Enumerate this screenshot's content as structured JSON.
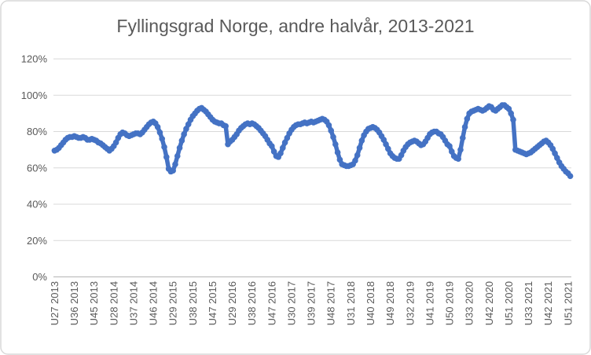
{
  "title": "Fyllingsgrad Norge, andre halvår, 2013-2021",
  "chart_data": {
    "type": "line",
    "title": "Fyllingsgrad Norge, andre halvår, 2013-2021",
    "unit": "percent",
    "ylim": [
      0,
      120
    ],
    "y_tick_step": 20,
    "y_tick_labels": [
      "0%",
      "20%",
      "40%",
      "60%",
      "80%",
      "100%",
      "120%"
    ],
    "x_tick_interval": 9,
    "x_tick_labels": [
      "U27 2013",
      "U36 2013",
      "U45 2013",
      "U28 2014",
      "U37 2014",
      "U46 2014",
      "U29 2015",
      "U38 2015",
      "U47 2015",
      "U29 2016",
      "U38 2016",
      "U47 2016",
      "U30 2017",
      "U39 2017",
      "U48 2017",
      "U31 2018",
      "U40 2018",
      "U49 2018",
      "U32 2019",
      "U41 2019",
      "U50 2019",
      "U33 2020",
      "U42 2020",
      "U51 2020",
      "U33 2021",
      "U42 2021",
      "U51 2021"
    ],
    "grid": true,
    "legend": false,
    "series_name": "Fyllingsgrad",
    "colors": {
      "marker": "#4472C4",
      "gridline": "#D9D9D9",
      "axis_line": "#BFBFBF",
      "label_text": "#595959",
      "title_text": "#595959",
      "border": "#D9D9D9",
      "background": "#FFFFFF"
    },
    "weekly_series": [
      {
        "year": 2013,
        "first_week": 27,
        "values": [
          69.5,
          70,
          71,
          72.5,
          74,
          75.5,
          76.5,
          77,
          77,
          77.5,
          77,
          76.5,
          76.5,
          77,
          76.5,
          75.5,
          75.5,
          76,
          75.5,
          75,
          74,
          73.5,
          72.5,
          71.5,
          70.5,
          69.5
        ]
      },
      {
        "year": 2014,
        "first_week": 27,
        "values": [
          70.5,
          72,
          74,
          76.5,
          78.5,
          79.5,
          79,
          78,
          77.5,
          78,
          78.5,
          79,
          79,
          78.5,
          79.5,
          81,
          82.5,
          84,
          85,
          85.5,
          84.5,
          82.5,
          79.5,
          76,
          71.5,
          66
        ]
      },
      {
        "year": 2015,
        "first_week": 27,
        "values": [
          59.5,
          58,
          58.5,
          62,
          66.5,
          71,
          75,
          78.5,
          81.5,
          84,
          86.5,
          88.5,
          90,
          91.5,
          92.5,
          93,
          92,
          91,
          89.5,
          88,
          86.5,
          85.5,
          85,
          84.5,
          84.5,
          83.5,
          83
        ]
      },
      {
        "year": 2016,
        "first_week": 27,
        "values": [
          73,
          74.5,
          75.5,
          77,
          78.5,
          80.5,
          82,
          83,
          84,
          84.5,
          84,
          84.5,
          84,
          83,
          82,
          80.5,
          79,
          77.5,
          75.5,
          73.5,
          72,
          69,
          66.5,
          66,
          68,
          71
        ]
      },
      {
        "year": 2017,
        "first_week": 27,
        "values": [
          74,
          76.5,
          79,
          81,
          82.5,
          83.5,
          84,
          84,
          84.5,
          85,
          84.5,
          85,
          85.5,
          85,
          85.5,
          86,
          86.5,
          87,
          86.5,
          85.5,
          83.5,
          80.5,
          77,
          73,
          68.5,
          64.5
        ]
      },
      {
        "year": 2018,
        "first_week": 27,
        "values": [
          62,
          61.5,
          61,
          61,
          61.5,
          62,
          64,
          67,
          71,
          75,
          78,
          80,
          81.5,
          82,
          82.5,
          82,
          81,
          79.5,
          77.5,
          75.5,
          73,
          70.5,
          68,
          66.5,
          65.5,
          65
        ]
      },
      {
        "year": 2019,
        "first_week": 27,
        "values": [
          65,
          67,
          69.5,
          71.5,
          73,
          74,
          74.5,
          75,
          74.5,
          73.5,
          72.5,
          73,
          74.5,
          76.5,
          78.5,
          79.5,
          80,
          80,
          79,
          78.5,
          77,
          75,
          73,
          72,
          69,
          66.5
        ]
      },
      {
        "year": 2020,
        "first_week": 27,
        "values": [
          65.5,
          65,
          70,
          76.5,
          82.5,
          87,
          90,
          91,
          91.5,
          92,
          92.5,
          92,
          91.5,
          92,
          93,
          94,
          93.5,
          92,
          91.5,
          92.5,
          93.5,
          94.5,
          94.5,
          93.5,
          92.5,
          90,
          86.5
        ]
      },
      {
        "year": 2021,
        "first_week": 27,
        "values": [
          70,
          69.5,
          69,
          68.5,
          68,
          67.5,
          68,
          68.5,
          69.5,
          70.5,
          71.5,
          72.5,
          73.5,
          74.5,
          75,
          74,
          72.5,
          70.5,
          68,
          65.5,
          63,
          61,
          59.5,
          58,
          57,
          55.5
        ]
      }
    ]
  }
}
